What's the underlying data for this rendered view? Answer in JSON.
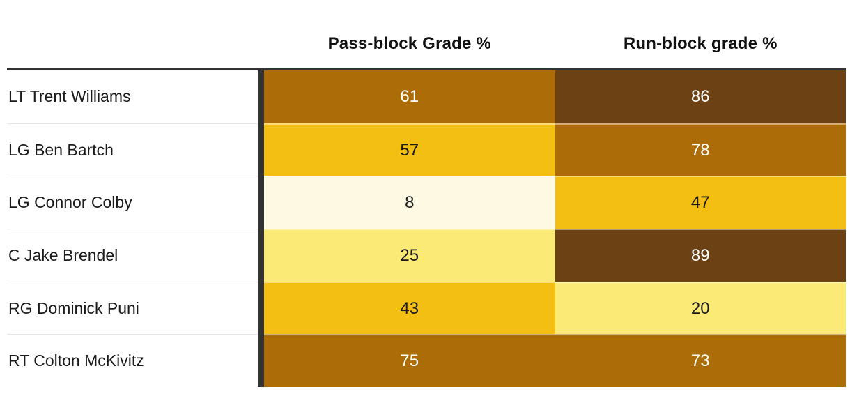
{
  "table": {
    "column_headers": [
      {
        "label": "Pass-block Grade %"
      },
      {
        "label": "Run-block grade %"
      }
    ],
    "rows": [
      {
        "player": "LT Trent Williams",
        "pass": {
          "value": "61",
          "bg": "#AC6C08",
          "fg": "#FFFFFF"
        },
        "run": {
          "value": "86",
          "bg": "#6C4113",
          "fg": "#FFFFFF"
        }
      },
      {
        "player": "LG Ben Bartch",
        "pass": {
          "value": "57",
          "bg": "#F2BF12",
          "fg": "#1B1B1B"
        },
        "run": {
          "value": "78",
          "bg": "#AC6C08",
          "fg": "#FFFFFF"
        }
      },
      {
        "player": "LG Connor Colby",
        "pass": {
          "value": "8",
          "bg": "#FDF9E3",
          "fg": "#1B1B1B"
        },
        "run": {
          "value": "47",
          "bg": "#F2BF12",
          "fg": "#1B1B1B"
        }
      },
      {
        "player": "C Jake Brendel",
        "pass": {
          "value": "25",
          "bg": "#FCEA76",
          "fg": "#1B1B1B"
        },
        "run": {
          "value": "89",
          "bg": "#6C4113",
          "fg": "#FFFFFF"
        }
      },
      {
        "player": "RG Dominick Puni",
        "pass": {
          "value": "43",
          "bg": "#F2BF12",
          "fg": "#1B1B1B"
        },
        "run": {
          "value": "20",
          "bg": "#FCEA76",
          "fg": "#1B1B1B"
        }
      },
      {
        "player": "RT Colton McKivitz",
        "pass": {
          "value": "75",
          "bg": "#AC6C08",
          "fg": "#FFFFFF"
        },
        "run": {
          "value": "73",
          "bg": "#AC6C08",
          "fg": "#FFFFFF"
        }
      }
    ],
    "accent_border_color": "#333333"
  },
  "chart_data": {
    "type": "heatmap",
    "categories": [
      "LT Trent Williams",
      "LG Ben Bartch",
      "LG Connor Colby",
      "C Jake Brendel",
      "RG Dominick Puni",
      "RT Colton McKivitz"
    ],
    "series": [
      {
        "name": "Pass-block Grade %",
        "values": [
          61,
          57,
          8,
          25,
          43,
          75
        ]
      },
      {
        "name": "Run-block grade %",
        "values": [
          86,
          78,
          47,
          89,
          20,
          73
        ]
      }
    ],
    "value_range": [
      0,
      100
    ],
    "color_scale": [
      "#FDF9E3",
      "#FCEA76",
      "#F2BF12",
      "#AC6C08",
      "#6C4113"
    ],
    "legend_position": "none",
    "grid": false
  }
}
